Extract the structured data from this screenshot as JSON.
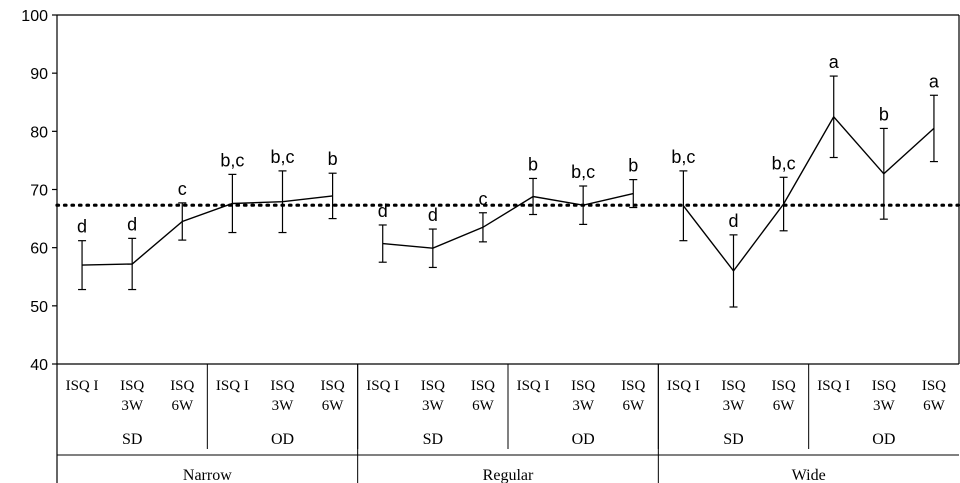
{
  "chart_data": {
    "type": "line",
    "title": "",
    "xlabel": "",
    "ylabel": "",
    "ylim": [
      40,
      100
    ],
    "yticks": [
      "40",
      "50",
      "60",
      "70",
      "80",
      "90",
      "100"
    ],
    "grid": false,
    "legend": "none",
    "reference_line": {
      "value": 67.3,
      "style": "dotted"
    },
    "points": [
      {
        "width": "Narrow",
        "diameter": "SD",
        "time": "ISQ I",
        "mean": 57.0,
        "err": 4.2,
        "letter": "d"
      },
      {
        "width": "Narrow",
        "diameter": "SD",
        "time": "ISQ 3W",
        "mean": 57.2,
        "err": 4.4,
        "letter": "d"
      },
      {
        "width": "Narrow",
        "diameter": "SD",
        "time": "ISQ 6W",
        "mean": 64.5,
        "err": 3.2,
        "letter": "c"
      },
      {
        "width": "Narrow",
        "diameter": "OD",
        "time": "ISQ I",
        "mean": 67.6,
        "err": 5.0,
        "letter": "b,c"
      },
      {
        "width": "Narrow",
        "diameter": "OD",
        "time": "ISQ 3W",
        "mean": 67.9,
        "err": 5.3,
        "letter": "b,c"
      },
      {
        "width": "Narrow",
        "diameter": "OD",
        "time": "ISQ 6W",
        "mean": 68.9,
        "err": 3.9,
        "letter": "b"
      },
      {
        "width": "Regular",
        "diameter": "SD",
        "time": "ISQ I",
        "mean": 60.7,
        "err": 3.2,
        "letter": "d"
      },
      {
        "width": "Regular",
        "diameter": "SD",
        "time": "ISQ 3W",
        "mean": 59.9,
        "err": 3.3,
        "letter": "d"
      },
      {
        "width": "Regular",
        "diameter": "SD",
        "time": "ISQ 6W",
        "mean": 63.5,
        "err": 2.5,
        "letter": "c"
      },
      {
        "width": "Regular",
        "diameter": "OD",
        "time": "ISQ I",
        "mean": 68.8,
        "err": 3.1,
        "letter": "b"
      },
      {
        "width": "Regular",
        "diameter": "OD",
        "time": "ISQ 3W",
        "mean": 67.3,
        "err": 3.3,
        "letter": "b,c"
      },
      {
        "width": "Regular",
        "diameter": "OD",
        "time": "ISQ 6W",
        "mean": 69.3,
        "err": 2.4,
        "letter": "b"
      },
      {
        "width": "Wide",
        "diameter": "SD",
        "time": "ISQ I",
        "mean": 67.2,
        "err": 6.0,
        "letter": "b,c"
      },
      {
        "width": "Wide",
        "diameter": "SD",
        "time": "ISQ 3W",
        "mean": 56.0,
        "err": 6.2,
        "letter": "d"
      },
      {
        "width": "Wide",
        "diameter": "SD",
        "time": "ISQ 6W",
        "mean": 67.5,
        "err": 4.6,
        "letter": "b,c"
      },
      {
        "width": "Wide",
        "diameter": "OD",
        "time": "ISQ I",
        "mean": 82.5,
        "err": 7.0,
        "letter": "a"
      },
      {
        "width": "Wide",
        "diameter": "OD",
        "time": "ISQ 3W",
        "mean": 72.7,
        "err": 7.8,
        "letter": "b"
      },
      {
        "width": "Wide",
        "diameter": "OD",
        "time": "ISQ 6W",
        "mean": 80.5,
        "err": 5.7,
        "letter": "a"
      }
    ]
  }
}
